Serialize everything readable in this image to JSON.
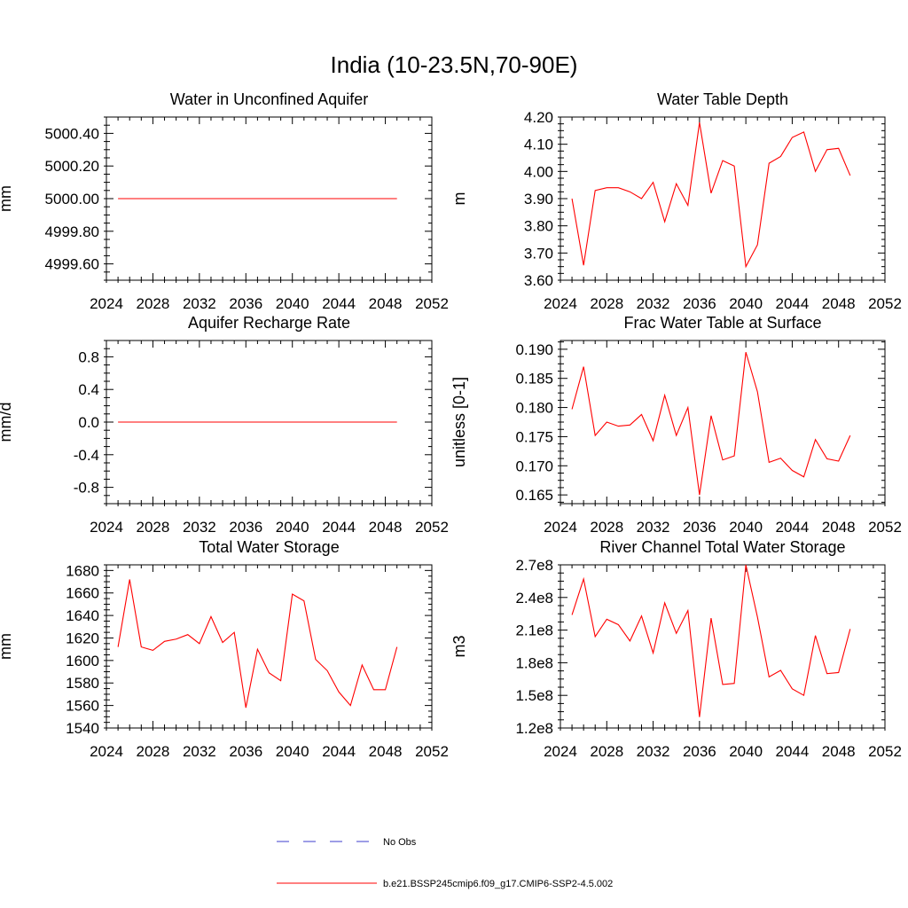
{
  "figure": {
    "title": "India (10-23.5N,70-90E)"
  },
  "colors": {
    "model": "#ff0000",
    "obs": "#3d3dcc",
    "axes": "#000000"
  },
  "legend": {
    "entries": [
      {
        "label": "No Obs",
        "style": "dashed",
        "color": "#3d3dcc"
      },
      {
        "label": "b.e21.BSSP245cmip6.f09_g17.CMIP6-SSP2-4.5.002",
        "style": "solid",
        "color": "#ff0000"
      }
    ]
  },
  "chart_data": [
    {
      "type": "line",
      "title": "Water in Unconfined Aquifer",
      "ylabel": "mm",
      "xlim": [
        2024,
        2052
      ],
      "ylim": [
        4999.5,
        5000.5
      ],
      "xticks": [
        "2024",
        "2028",
        "2032",
        "2036",
        "2040",
        "2044",
        "2048",
        "2052"
      ],
      "yticks": [
        "4999.60",
        "4999.80",
        "5000.00",
        "5000.20",
        "5000.40"
      ],
      "ytick_values": [
        4999.6,
        4999.8,
        5000.0,
        5000.2,
        5000.4
      ],
      "x": [
        2025,
        2026,
        2027,
        2028,
        2029,
        2030,
        2031,
        2032,
        2033,
        2034,
        2035,
        2036,
        2037,
        2038,
        2039,
        2040,
        2041,
        2042,
        2043,
        2044,
        2045,
        2046,
        2047,
        2048,
        2049
      ],
      "series": [
        {
          "values": [
            5000,
            5000,
            5000,
            5000,
            5000,
            5000,
            5000,
            5000,
            5000,
            5000,
            5000,
            5000,
            5000,
            5000,
            5000,
            5000,
            5000,
            5000,
            5000,
            5000,
            5000,
            5000,
            5000,
            5000,
            5000
          ]
        }
      ]
    },
    {
      "type": "line",
      "title": "Water Table Depth",
      "ylabel": "m",
      "xlim": [
        2024,
        2052
      ],
      "ylim": [
        3.6,
        4.2
      ],
      "xticks": [
        "2024",
        "2028",
        "2032",
        "2036",
        "2040",
        "2044",
        "2048",
        "2052"
      ],
      "yticks": [
        "3.60",
        "3.70",
        "3.80",
        "3.90",
        "4.00",
        "4.10",
        "4.20"
      ],
      "ytick_values": [
        3.6,
        3.7,
        3.8,
        3.9,
        4.0,
        4.1,
        4.2
      ],
      "x": [
        2025,
        2026,
        2027,
        2028,
        2029,
        2030,
        2031,
        2032,
        2033,
        2034,
        2035,
        2036,
        2037,
        2038,
        2039,
        2040,
        2041,
        2042,
        2043,
        2044,
        2045,
        2046,
        2047,
        2048,
        2049
      ],
      "series": [
        {
          "values": [
            3.9,
            3.655,
            3.93,
            3.94,
            3.94,
            3.925,
            3.9,
            3.96,
            3.815,
            3.955,
            3.875,
            4.18,
            3.92,
            4.04,
            4.02,
            3.65,
            3.73,
            4.03,
            4.055,
            4.125,
            4.145,
            4.0,
            4.08,
            4.085,
            3.985
          ]
        }
      ]
    },
    {
      "type": "line",
      "title": "Aquifer Recharge Rate",
      "ylabel": "mm/d",
      "xlim": [
        2024,
        2052
      ],
      "ylim": [
        -1.0,
        1.0
      ],
      "xticks": [
        "2024",
        "2028",
        "2032",
        "2036",
        "2040",
        "2044",
        "2048",
        "2052"
      ],
      "yticks": [
        "-0.8",
        "-0.4",
        "0.0",
        "0.4",
        "0.8"
      ],
      "ytick_values": [
        -0.8,
        -0.4,
        0.0,
        0.4,
        0.8
      ],
      "x": [
        2025,
        2026,
        2027,
        2028,
        2029,
        2030,
        2031,
        2032,
        2033,
        2034,
        2035,
        2036,
        2037,
        2038,
        2039,
        2040,
        2041,
        2042,
        2043,
        2044,
        2045,
        2046,
        2047,
        2048,
        2049
      ],
      "series": [
        {
          "values": [
            0,
            0,
            0,
            0,
            0,
            0,
            0,
            0,
            0,
            0,
            0,
            0,
            0,
            0,
            0,
            0,
            0,
            0,
            0,
            0,
            0,
            0,
            0,
            0,
            0
          ]
        }
      ]
    },
    {
      "type": "line",
      "title": "Frac Water Table at Surface",
      "ylabel": "unitless [0-1]",
      "xlim": [
        2024,
        2052
      ],
      "ylim": [
        0.1635,
        0.1915
      ],
      "xticks": [
        "2024",
        "2028",
        "2032",
        "2036",
        "2040",
        "2044",
        "2048",
        "2052"
      ],
      "yticks": [
        "0.165",
        "0.170",
        "0.175",
        "0.180",
        "0.185",
        "0.190"
      ],
      "ytick_values": [
        0.165,
        0.17,
        0.175,
        0.18,
        0.185,
        0.19
      ],
      "x": [
        2025,
        2026,
        2027,
        2028,
        2029,
        2030,
        2031,
        2032,
        2033,
        2034,
        2035,
        2036,
        2037,
        2038,
        2039,
        2040,
        2041,
        2042,
        2043,
        2044,
        2045,
        2046,
        2047,
        2048,
        2049
      ],
      "series": [
        {
          "values": [
            0.1797,
            0.187,
            0.1752,
            0.1775,
            0.1768,
            0.177,
            0.1788,
            0.1743,
            0.1821,
            0.1752,
            0.18,
            0.165,
            0.1786,
            0.171,
            0.1717,
            0.1895,
            0.1827,
            0.1706,
            0.1713,
            0.1692,
            0.1681,
            0.1745,
            0.1712,
            0.1708,
            0.1752
          ]
        }
      ]
    },
    {
      "type": "line",
      "title": "Total Water Storage",
      "ylabel": "mm",
      "xlim": [
        2024,
        2052
      ],
      "ylim": [
        1540,
        1685
      ],
      "xticks": [
        "2024",
        "2028",
        "2032",
        "2036",
        "2040",
        "2044",
        "2048",
        "2052"
      ],
      "yticks": [
        "1540",
        "1560",
        "1580",
        "1600",
        "1620",
        "1640",
        "1660",
        "1680"
      ],
      "ytick_values": [
        1540,
        1560,
        1580,
        1600,
        1620,
        1640,
        1660,
        1680
      ],
      "x": [
        2025,
        2026,
        2027,
        2028,
        2029,
        2030,
        2031,
        2032,
        2033,
        2034,
        2035,
        2036,
        2037,
        2038,
        2039,
        2040,
        2041,
        2042,
        2043,
        2044,
        2045,
        2046,
        2047,
        2048,
        2049
      ],
      "series": [
        {
          "values": [
            1612,
            1672,
            1612,
            1609,
            1617,
            1619,
            1623,
            1615,
            1639,
            1616,
            1625,
            1558,
            1610,
            1589,
            1582,
            1659,
            1653,
            1601,
            1591,
            1572,
            1560,
            1596,
            1574,
            1574,
            1612
          ]
        }
      ]
    },
    {
      "type": "line",
      "title": "River Channel Total Water Storage",
      "ylabel": "m3",
      "xlim": [
        2024,
        2052
      ],
      "ylim": [
        120000000.0,
        270000000.0
      ],
      "xticks": [
        "2024",
        "2028",
        "2032",
        "2036",
        "2040",
        "2044",
        "2048",
        "2052"
      ],
      "yticks": [
        "1.2e8",
        "1.5e8",
        "1.8e8",
        "2.1e8",
        "2.4e8",
        "2.7e8"
      ],
      "ytick_values": [
        120000000.0,
        150000000.0,
        180000000.0,
        210000000.0,
        240000000.0,
        270000000.0
      ],
      "x": [
        2025,
        2026,
        2027,
        2028,
        2029,
        2030,
        2031,
        2032,
        2033,
        2034,
        2035,
        2036,
        2037,
        2038,
        2039,
        2040,
        2041,
        2042,
        2043,
        2044,
        2045,
        2046,
        2047,
        2048,
        2049
      ],
      "series": [
        {
          "values": [
            224000000.0,
            257000000.0,
            204000000.0,
            220000000.0,
            215000000.0,
            200000000.0,
            223000000.0,
            189000000.0,
            235000000.0,
            207000000.0,
            228000000.0,
            130000000.0,
            221000000.0,
            160000000.0,
            161000000.0,
            270000000.0,
            222000000.0,
            167000000.0,
            173000000.0,
            156000000.0,
            150000000.0,
            205000000.0,
            170000000.0,
            171000000.0,
            211000000.0
          ]
        }
      ]
    }
  ]
}
